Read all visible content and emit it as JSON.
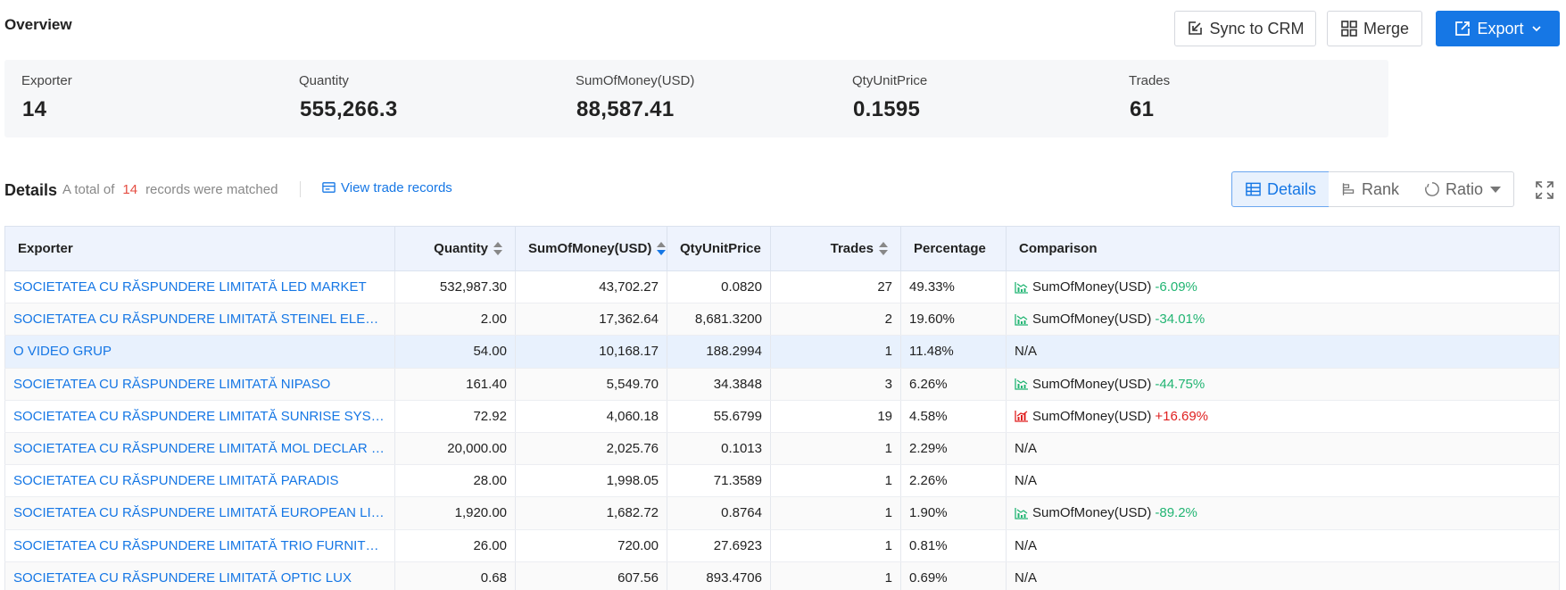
{
  "header": {
    "title": "Overview",
    "sync_label": "Sync to CRM",
    "merge_label": "Merge",
    "export_label": "Export"
  },
  "stats": [
    {
      "label": "Exporter",
      "value": "14"
    },
    {
      "label": "Quantity",
      "value": "555,266.3"
    },
    {
      "label": "SumOfMoney(USD)",
      "value": "88,587.41"
    },
    {
      "label": "QtyUnitPrice",
      "value": "0.1595"
    },
    {
      "label": "Trades",
      "value": "61"
    }
  ],
  "details": {
    "title": "Details",
    "total_prefix": "A total of",
    "total_count": "14",
    "total_suffix": "records were matched",
    "view_link": "View trade records",
    "tab_details": "Details",
    "tab_rank": "Rank",
    "tab_ratio": "Ratio"
  },
  "table": {
    "columns": [
      "Exporter",
      "Quantity",
      "SumOfMoney(USD)",
      "QtyUnitPrice",
      "Trades",
      "Percentage",
      "Comparison"
    ],
    "rows": [
      {
        "exporter": "SOCIETATEA CU RĂSPUNDERE LIMITATĂ LED MARKET",
        "quantity": "532,987.30",
        "money": "43,702.27",
        "unit": "0.0820",
        "trades": "27",
        "pct": "49.33%",
        "cmp_label": "SumOfMoney(USD)",
        "cmp_value": "-6.09%",
        "cmp_dir": "down"
      },
      {
        "exporter": "SOCIETATEA CU RĂSPUNDERE LIMITATĂ STEINEL ELECTRONIC",
        "quantity": "2.00",
        "money": "17,362.64",
        "unit": "8,681.3200",
        "trades": "2",
        "pct": "19.60%",
        "cmp_label": "SumOfMoney(USD)",
        "cmp_value": "-34.01%",
        "cmp_dir": "down"
      },
      {
        "exporter": "O VIDEO GRUP",
        "quantity": "54.00",
        "money": "10,168.17",
        "unit": "188.2994",
        "trades": "1",
        "pct": "11.48%",
        "cmp_label": "N/A",
        "cmp_value": "",
        "cmp_dir": "none"
      },
      {
        "exporter": "SOCIETATEA CU RĂSPUNDERE LIMITATĂ NIPASO",
        "quantity": "161.40",
        "money": "5,549.70",
        "unit": "34.3848",
        "trades": "3",
        "pct": "6.26%",
        "cmp_label": "SumOfMoney(USD)",
        "cmp_value": "-44.75%",
        "cmp_dir": "down"
      },
      {
        "exporter": "SOCIETATEA CU RĂSPUNDERE LIMITATĂ SUNRISE SYSTEMS DEVEL...",
        "quantity": "72.92",
        "money": "4,060.18",
        "unit": "55.6799",
        "trades": "19",
        "pct": "4.58%",
        "cmp_label": "SumOfMoney(USD)",
        "cmp_value": "+16.69%",
        "cmp_dir": "up"
      },
      {
        "exporter": "SOCIETATEA CU RĂSPUNDERE LIMITATĂ MOL DECLAR PROIECT",
        "quantity": "20,000.00",
        "money": "2,025.76",
        "unit": "0.1013",
        "trades": "1",
        "pct": "2.29%",
        "cmp_label": "N/A",
        "cmp_value": "",
        "cmp_dir": "none"
      },
      {
        "exporter": "SOCIETATEA CU RĂSPUNDERE LIMITATĂ PARADIS",
        "quantity": "28.00",
        "money": "1,998.05",
        "unit": "71.3589",
        "trades": "1",
        "pct": "2.26%",
        "cmp_label": "N/A",
        "cmp_value": "",
        "cmp_dir": "none"
      },
      {
        "exporter": "SOCIETATEA CU RĂSPUNDERE LIMITATĂ EUROPEAN LIGHTING",
        "quantity": "1,920.00",
        "money": "1,682.72",
        "unit": "0.8764",
        "trades": "1",
        "pct": "1.90%",
        "cmp_label": "SumOfMoney(USD)",
        "cmp_value": "-89.2%",
        "cmp_dir": "down"
      },
      {
        "exporter": "SOCIETATEA CU RĂSPUNDERE LIMITATĂ TRIO FURNITURE",
        "quantity": "26.00",
        "money": "720.00",
        "unit": "27.6923",
        "trades": "1",
        "pct": "0.81%",
        "cmp_label": "N/A",
        "cmp_value": "",
        "cmp_dir": "none"
      },
      {
        "exporter": "SOCIETATEA CU RĂSPUNDERE LIMITATĂ OPTIC LUX",
        "quantity": "0.68",
        "money": "607.56",
        "unit": "893.4706",
        "trades": "1",
        "pct": "0.69%",
        "cmp_label": "N/A",
        "cmp_value": "",
        "cmp_dir": "none"
      }
    ]
  },
  "colors": {
    "accent": "#1677e5",
    "negative": "#22b573",
    "positive": "#e02020",
    "count": "#e54d42"
  },
  "icons": {
    "sync": "sync-crm-icon",
    "merge": "merge-icon",
    "export": "export-icon",
    "details": "table-icon",
    "rank": "rank-icon",
    "ratio": "ratio-icon",
    "fullscreen": "fullscreen-icon",
    "trend_down": "chart-down-icon",
    "trend_up": "chart-up-icon"
  }
}
